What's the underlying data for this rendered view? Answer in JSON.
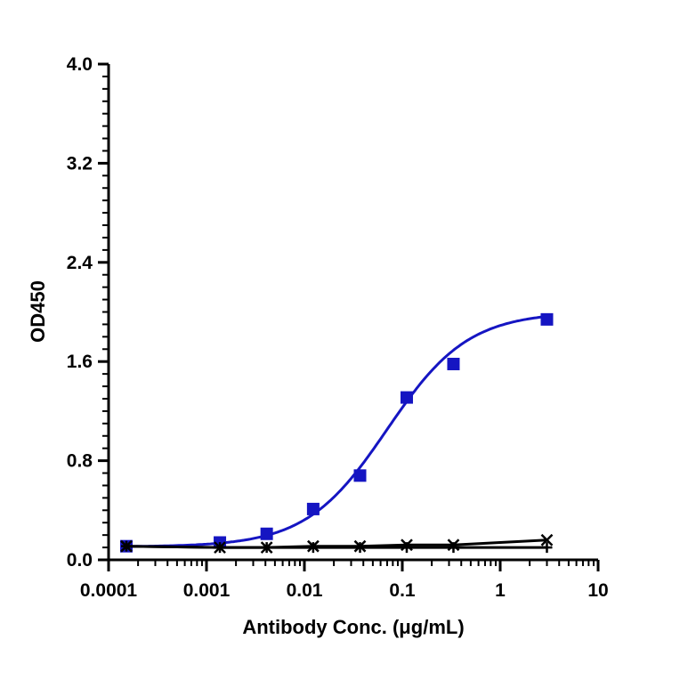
{
  "chart_data": {
    "type": "scatter",
    "xlabel": "Antibody Conc. (μg/mL)",
    "ylabel": "OD450",
    "xscale": "log",
    "xlim": [
      0.0001,
      10
    ],
    "ylim": [
      0,
      4.0
    ],
    "x_ticks": [
      0.0001,
      0.001,
      0.01,
      0.1,
      1,
      10
    ],
    "x_tick_labels": [
      "0.0001",
      "0.001",
      "0.01",
      "0.1",
      "1",
      "10"
    ],
    "y_ticks": [
      0,
      0.8,
      1.6,
      2.4,
      3.2,
      4.0
    ],
    "y_tick_labels": [
      "0.0",
      "0.8",
      "1.6",
      "2.4",
      "3.2",
      "4.0"
    ],
    "grid": false,
    "series": [
      {
        "color": "#1515c2",
        "marker": "square",
        "fit": "4pl",
        "x": [
          0.000152,
          0.00137,
          0.00412,
          0.0123,
          0.037,
          0.111,
          0.333,
          3
        ],
        "y": [
          0.11,
          0.14,
          0.21,
          0.41,
          0.68,
          1.31,
          1.58,
          1.94
        ]
      },
      {
        "color": "#000000",
        "marker": "x",
        "fit": "line",
        "x": [
          0.000152,
          0.00137,
          0.00412,
          0.0123,
          0.037,
          0.111,
          0.333,
          3
        ],
        "y": [
          0.11,
          0.1,
          0.1,
          0.11,
          0.11,
          0.12,
          0.12,
          0.16
        ]
      },
      {
        "color": "#000000",
        "marker": "plus",
        "fit": "line",
        "x": [
          0.000152,
          0.00137,
          0.00412,
          0.0123,
          0.037,
          0.111,
          0.333,
          3
        ],
        "y": [
          0.11,
          0.1,
          0.1,
          0.1,
          0.1,
          0.1,
          0.1,
          0.1
        ]
      }
    ]
  }
}
